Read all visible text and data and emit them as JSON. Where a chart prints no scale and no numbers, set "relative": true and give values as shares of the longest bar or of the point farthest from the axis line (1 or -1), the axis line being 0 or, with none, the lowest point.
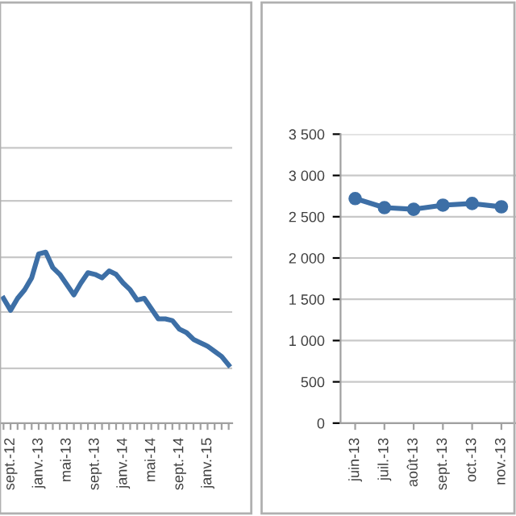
{
  "chart_data": [
    {
      "type": "line",
      "relative": true,
      "tick_labels": "x",
      "marker": "none",
      "line_style": "solid",
      "ref_lines": [
        {
          "axis": "y",
          "value": 0.32,
          "color": "#c8c8c8"
        },
        {
          "axis": "y",
          "value": 0.65,
          "color": "#c8c8c8"
        },
        {
          "axis": "y",
          "value": 0.97,
          "color": "#c8c8c8"
        },
        {
          "axis": "y",
          "value": 1.3,
          "color": "#c8c8c8"
        },
        {
          "axis": "y",
          "value": 1.61,
          "color": "#c8c8c8"
        }
      ],
      "categories": [
        null,
        "sept.-12",
        null,
        null,
        null,
        "janv.-13",
        null,
        null,
        null,
        "mai-13",
        null,
        null,
        null,
        "sept.-13",
        null,
        null,
        null,
        "janv.-14",
        null,
        null,
        null,
        "mai-14",
        null,
        null,
        null,
        "sept.-14",
        null,
        null,
        null,
        "janv.-15",
        null,
        null,
        null
      ],
      "series": [
        {
          "color": "#3d6fa6",
          "values": [
            0.73,
            0.66,
            0.73,
            0.78,
            0.85,
            0.99,
            1.0,
            0.91,
            0.87,
            0.81,
            0.75,
            0.82,
            0.88,
            0.87,
            0.85,
            0.89,
            0.87,
            0.82,
            0.78,
            0.72,
            0.73,
            0.67,
            0.61,
            0.61,
            0.6,
            0.55,
            0.53,
            0.49,
            0.47,
            0.45,
            0.42,
            0.39,
            0.34
          ]
        }
      ]
    },
    {
      "type": "line",
      "grid": "y",
      "marker": "circle",
      "line_style": "solid",
      "categories": [
        "juin-13",
        "juil.-13",
        "août-13",
        "sept.-13",
        "oct.-13",
        "nov.-13"
      ],
      "ylim": [
        0,
        3500
      ],
      "yticks": [
        0,
        500,
        {
          "value": 1000,
          "label": "1 000"
        },
        {
          "value": 1500,
          "label": "1 500"
        },
        {
          "value": 2000,
          "label": "2 000"
        },
        {
          "value": 2500,
          "label": "2 500"
        },
        {
          "value": 3000,
          "label": "3 000"
        },
        {
          "value": 3500,
          "label": "3 500"
        }
      ],
      "series": [
        {
          "color": "#3d6fa6",
          "values": [
            2720,
            2610,
            2590,
            2640,
            2660,
            2620
          ]
        }
      ]
    }
  ]
}
